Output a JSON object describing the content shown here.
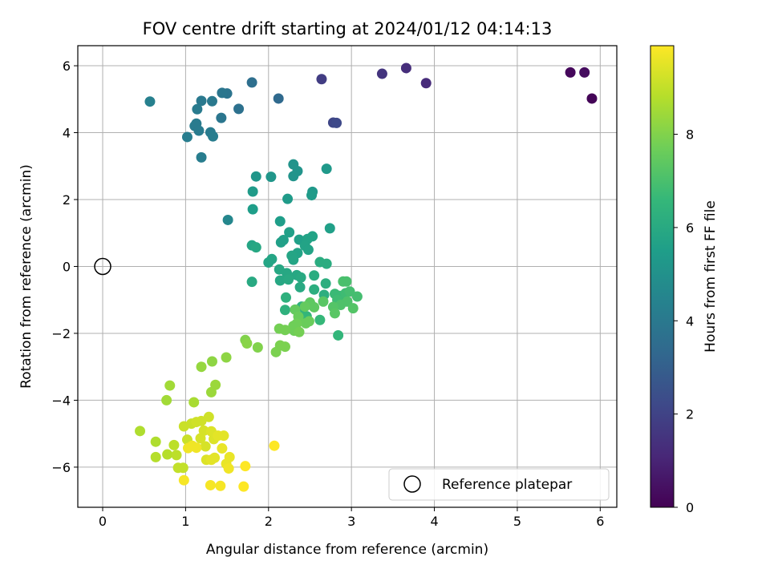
{
  "chart_data": {
    "type": "scatter",
    "title": "FOV centre drift starting at 2024/01/12 04:14:13",
    "xlabel": "Angular distance from reference (arcmin)",
    "ylabel": "Rotation from reference (arcmin)",
    "xlim": [
      -0.3,
      6.2
    ],
    "ylim": [
      -7.2,
      6.6
    ],
    "x_ticks": [
      0,
      1,
      2,
      3,
      4,
      5,
      6
    ],
    "y_ticks": [
      -6,
      -4,
      -2,
      0,
      2,
      4,
      6
    ],
    "grid": true,
    "colorbar": {
      "label": "Hours from first FF file",
      "colormap": "viridis",
      "range": [
        0,
        9.9
      ],
      "ticks": [
        0,
        2,
        4,
        6,
        8
      ]
    },
    "colormap_stops": [
      "#440154",
      "#482878",
      "#3e4989",
      "#31688e",
      "#26828e",
      "#1f9e89",
      "#35b779",
      "#6ece58",
      "#b5de2b",
      "#fde725"
    ],
    "legend": {
      "position": "lower-right",
      "entries": [
        {
          "label": "Reference platepar",
          "marker": "open-circle"
        }
      ]
    },
    "reference_point": {
      "x": 0,
      "y": 0
    },
    "series": [
      {
        "points": [
          [
            5.9,
            5.02,
            0.1
          ],
          [
            5.64,
            5.8,
            0.2
          ],
          [
            5.81,
            5.8,
            0.3
          ],
          [
            3.9,
            5.48,
            1.2
          ],
          [
            3.66,
            5.93,
            1.3
          ],
          [
            3.37,
            5.76,
            1.5
          ],
          [
            2.64,
            5.6,
            1.8
          ],
          [
            2.78,
            4.3,
            2.1
          ],
          [
            2.82,
            4.29,
            2.2
          ],
          [
            2.12,
            5.02,
            3.4
          ],
          [
            1.8,
            5.5,
            3.6
          ],
          [
            1.64,
            4.71,
            3.7
          ],
          [
            1.5,
            5.17,
            3.8
          ],
          [
            1.44,
            5.19,
            3.9
          ],
          [
            1.43,
            4.44,
            3.9
          ],
          [
            1.32,
            4.94,
            4.0
          ],
          [
            1.19,
            4.95,
            4.0
          ],
          [
            1.14,
            4.7,
            4.1
          ],
          [
            1.13,
            4.27,
            4.1
          ],
          [
            1.11,
            4.2,
            4.1
          ],
          [
            1.16,
            4.06,
            4.1
          ],
          [
            1.3,
            4.01,
            4.1
          ],
          [
            1.33,
            3.89,
            4.2
          ],
          [
            1.02,
            3.87,
            4.2
          ],
          [
            1.19,
            3.26,
            4.2
          ],
          [
            0.57,
            4.93,
            4.3
          ],
          [
            1.51,
            1.39,
            4.6
          ],
          [
            2.3,
            3.05,
            5.1
          ],
          [
            2.35,
            2.85,
            5.1
          ],
          [
            2.3,
            2.7,
            5.1
          ],
          [
            2.03,
            2.68,
            5.2
          ],
          [
            1.85,
            2.69,
            5.2
          ],
          [
            2.7,
            2.92,
            5.3
          ],
          [
            2.53,
            2.23,
            5.3
          ],
          [
            2.52,
            2.13,
            5.4
          ],
          [
            2.23,
            2.02,
            5.4
          ],
          [
            1.81,
            2.24,
            5.4
          ],
          [
            1.81,
            1.71,
            5.5
          ],
          [
            2.14,
            1.35,
            5.5
          ],
          [
            2.74,
            1.14,
            5.6
          ],
          [
            2.25,
            1.02,
            5.6
          ],
          [
            2.18,
            0.79,
            5.6
          ],
          [
            2.15,
            0.72,
            5.6
          ],
          [
            2.37,
            0.8,
            5.6
          ],
          [
            2.47,
            0.82,
            5.7
          ],
          [
            2.53,
            0.9,
            5.7
          ],
          [
            2.44,
            0.62,
            5.7
          ],
          [
            2.48,
            0.5,
            5.7
          ],
          [
            2.35,
            0.4,
            5.7
          ],
          [
            2.28,
            0.32,
            5.8
          ],
          [
            2.3,
            0.2,
            5.8
          ],
          [
            2.04,
            0.22,
            5.8
          ],
          [
            2.0,
            0.12,
            5.8
          ],
          [
            1.8,
            0.63,
            5.8
          ],
          [
            1.85,
            0.57,
            5.9
          ],
          [
            2.13,
            -0.09,
            5.9
          ],
          [
            2.22,
            -0.2,
            5.9
          ],
          [
            2.14,
            -0.42,
            5.9
          ],
          [
            2.34,
            -0.26,
            5.9
          ],
          [
            2.39,
            -0.33,
            6.0
          ],
          [
            2.38,
            -0.62,
            6.0
          ],
          [
            2.24,
            -0.39,
            6.0
          ],
          [
            1.8,
            -0.46,
            6.0
          ],
          [
            2.62,
            0.13,
            6.1
          ],
          [
            2.7,
            0.08,
            6.1
          ],
          [
            2.55,
            -0.27,
            6.1
          ],
          [
            2.69,
            -0.51,
            6.2
          ],
          [
            2.55,
            -0.69,
            6.2
          ],
          [
            2.67,
            -0.85,
            6.2
          ],
          [
            2.21,
            -0.93,
            6.3
          ],
          [
            2.2,
            -1.3,
            6.3
          ],
          [
            2.4,
            -1.2,
            6.4
          ],
          [
            2.42,
            -1.47,
            6.4
          ],
          [
            2.84,
            -2.06,
            6.5
          ],
          [
            2.46,
            -1.49,
            6.5
          ],
          [
            2.39,
            -1.59,
            6.6
          ],
          [
            2.62,
            -1.6,
            6.6
          ],
          [
            2.8,
            -0.82,
            6.7
          ],
          [
            2.86,
            -0.88,
            6.7
          ],
          [
            2.83,
            -1.0,
            6.8
          ],
          [
            2.93,
            -0.8,
            6.8
          ],
          [
            2.98,
            -0.75,
            6.9
          ],
          [
            3.07,
            -0.9,
            6.9
          ],
          [
            2.9,
            -0.45,
            7.0
          ],
          [
            2.94,
            -0.45,
            7.0
          ],
          [
            2.95,
            -1.05,
            7.1
          ],
          [
            2.87,
            -1.15,
            7.1
          ],
          [
            3.02,
            -1.25,
            7.2
          ],
          [
            2.78,
            -1.21,
            7.2
          ],
          [
            2.8,
            -1.4,
            7.3
          ],
          [
            2.66,
            -1.05,
            7.3
          ],
          [
            2.55,
            -1.22,
            7.4
          ],
          [
            2.5,
            -1.08,
            7.4
          ],
          [
            2.44,
            -1.2,
            7.5
          ],
          [
            2.32,
            -1.29,
            7.5
          ],
          [
            2.36,
            -1.5,
            7.6
          ],
          [
            2.45,
            -1.7,
            7.6
          ],
          [
            2.49,
            -1.64,
            7.6
          ],
          [
            2.34,
            -1.71,
            7.7
          ],
          [
            2.3,
            -1.78,
            7.7
          ],
          [
            2.31,
            -1.92,
            7.7
          ],
          [
            2.37,
            -1.96,
            7.8
          ],
          [
            2.2,
            -1.9,
            7.8
          ],
          [
            2.13,
            -1.86,
            7.8
          ],
          [
            2.2,
            -2.4,
            7.9
          ],
          [
            2.14,
            -2.36,
            7.9
          ],
          [
            2.09,
            -2.56,
            7.9
          ],
          [
            1.87,
            -2.42,
            8.0
          ],
          [
            1.72,
            -2.2,
            8.0
          ],
          [
            1.74,
            -2.3,
            8.1
          ],
          [
            1.49,
            -2.72,
            8.2
          ],
          [
            1.32,
            -2.84,
            8.2
          ],
          [
            1.19,
            -3.0,
            8.3
          ],
          [
            1.36,
            -3.54,
            8.4
          ],
          [
            1.31,
            -3.76,
            8.4
          ],
          [
            0.81,
            -3.56,
            8.5
          ],
          [
            0.77,
            -4.0,
            8.5
          ],
          [
            1.1,
            -4.06,
            8.6
          ],
          [
            0.45,
            -4.92,
            8.7
          ],
          [
            0.64,
            -5.24,
            8.7
          ],
          [
            0.64,
            -5.7,
            8.8
          ],
          [
            0.78,
            -5.62,
            8.8
          ],
          [
            0.86,
            -5.34,
            8.9
          ],
          [
            0.89,
            -5.64,
            8.9
          ],
          [
            0.91,
            -6.02,
            9.0
          ],
          [
            0.97,
            -6.02,
            9.0
          ],
          [
            1.02,
            -5.18,
            9.1
          ],
          [
            0.98,
            -4.78,
            9.1
          ],
          [
            1.07,
            -4.7,
            9.1
          ],
          [
            1.13,
            -4.65,
            9.2
          ],
          [
            1.19,
            -4.62,
            9.2
          ],
          [
            1.28,
            -4.5,
            9.2
          ],
          [
            1.22,
            -4.91,
            9.3
          ],
          [
            1.18,
            -5.14,
            9.3
          ],
          [
            1.24,
            -5.38,
            9.3
          ],
          [
            1.31,
            -4.93,
            9.4
          ],
          [
            1.34,
            -5.16,
            9.4
          ],
          [
            1.25,
            -5.78,
            9.4
          ],
          [
            1.31,
            -5.78,
            9.5
          ],
          [
            1.35,
            -5.72,
            9.5
          ],
          [
            1.39,
            -5.06,
            9.5
          ],
          [
            1.46,
            -5.06,
            9.5
          ],
          [
            1.44,
            -5.44,
            9.6
          ],
          [
            1.53,
            -5.7,
            9.6
          ],
          [
            1.49,
            -5.9,
            9.6
          ],
          [
            1.52,
            -6.04,
            9.7
          ],
          [
            1.13,
            -5.42,
            9.7
          ],
          [
            1.08,
            -5.36,
            9.7
          ],
          [
            1.03,
            -5.43,
            9.7
          ],
          [
            0.98,
            -6.39,
            9.8
          ],
          [
            1.3,
            -6.54,
            9.8
          ],
          [
            1.42,
            -6.56,
            9.8
          ],
          [
            1.72,
            -5.97,
            9.9
          ],
          [
            1.7,
            -6.58,
            9.9
          ],
          [
            2.07,
            -5.36,
            9.9
          ]
        ]
      }
    ]
  }
}
